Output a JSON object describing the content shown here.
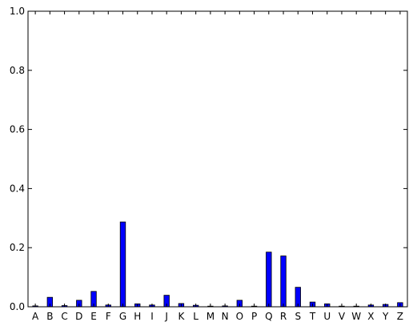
{
  "chart_data": {
    "type": "bar",
    "categories": [
      "A",
      "B",
      "C",
      "D",
      "E",
      "F",
      "G",
      "H",
      "I",
      "J",
      "K",
      "L",
      "M",
      "N",
      "O",
      "P",
      "Q",
      "R",
      "S",
      "T",
      "U",
      "V",
      "W",
      "X",
      "Y",
      "Z"
    ],
    "values": [
      0.003,
      0.032,
      0.004,
      0.022,
      0.052,
      0.006,
      0.287,
      0.01,
      0.006,
      0.039,
      0.011,
      0.005,
      0.002,
      0.003,
      0.022,
      0.001,
      0.185,
      0.172,
      0.066,
      0.016,
      0.01,
      0.001,
      0.001,
      0.006,
      0.008,
      0.014
    ],
    "yticks": [
      "0.0",
      "0.2",
      "0.4",
      "0.6",
      "0.8",
      "1.0"
    ],
    "ylim": [
      0,
      1.0
    ],
    "title": "",
    "xlabel": "",
    "ylabel": "",
    "grid": false,
    "bar_color": "#0000ff"
  }
}
